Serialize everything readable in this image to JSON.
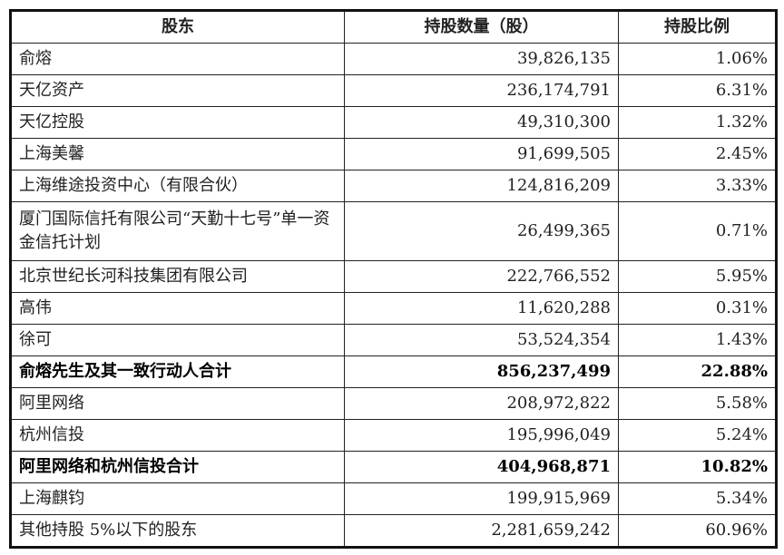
{
  "table": {
    "headers": [
      "股东",
      "持股数量（股）",
      "持股比例"
    ],
    "rows": [
      {
        "name": "俞熔",
        "shares": "39,826,135",
        "ratio": "1.06%",
        "bold": false
      },
      {
        "name": "天亿资产",
        "shares": "236,174,791",
        "ratio": "6.31%",
        "bold": false
      },
      {
        "name": "天亿控股",
        "shares": "49,310,300",
        "ratio": "1.32%",
        "bold": false
      },
      {
        "name": "上海美馨",
        "shares": "91,699,505",
        "ratio": "2.45%",
        "bold": false
      },
      {
        "name": "上海维途投资中心（有限合伙）",
        "shares": "124,816,209",
        "ratio": "3.33%",
        "bold": false
      },
      {
        "name": "厦门国际信托有限公司“天勤十七号”单一资金信托计划",
        "shares": "26,499,365",
        "ratio": "0.71%",
        "bold": false
      },
      {
        "name": "北京世纪长河科技集团有限公司",
        "shares": "222,766,552",
        "ratio": "5.95%",
        "bold": false
      },
      {
        "name": "高伟",
        "shares": "11,620,288",
        "ratio": "0.31%",
        "bold": false
      },
      {
        "name": "徐可",
        "shares": "53,524,354",
        "ratio": "1.43%",
        "bold": false
      },
      {
        "name": "俞熔先生及其一致行动人合计",
        "shares": "856,237,499",
        "ratio": "22.88%",
        "bold": true
      },
      {
        "name": "阿里网络",
        "shares": "208,972,822",
        "ratio": "5.58%",
        "bold": false
      },
      {
        "name": "杭州信投",
        "shares": "195,996,049",
        "ratio": "5.24%",
        "bold": false
      },
      {
        "name": "阿里网络和杭州信投合计",
        "shares": "404,968,871",
        "ratio": "10.82%",
        "bold": true
      },
      {
        "name": "上海麒钧",
        "shares": "199,915,969",
        "ratio": "5.34%",
        "bold": false
      },
      {
        "name": "其他持股 5%以下的股东",
        "shares": "2,281,659,242",
        "ratio": "60.96%",
        "bold": false
      }
    ]
  }
}
